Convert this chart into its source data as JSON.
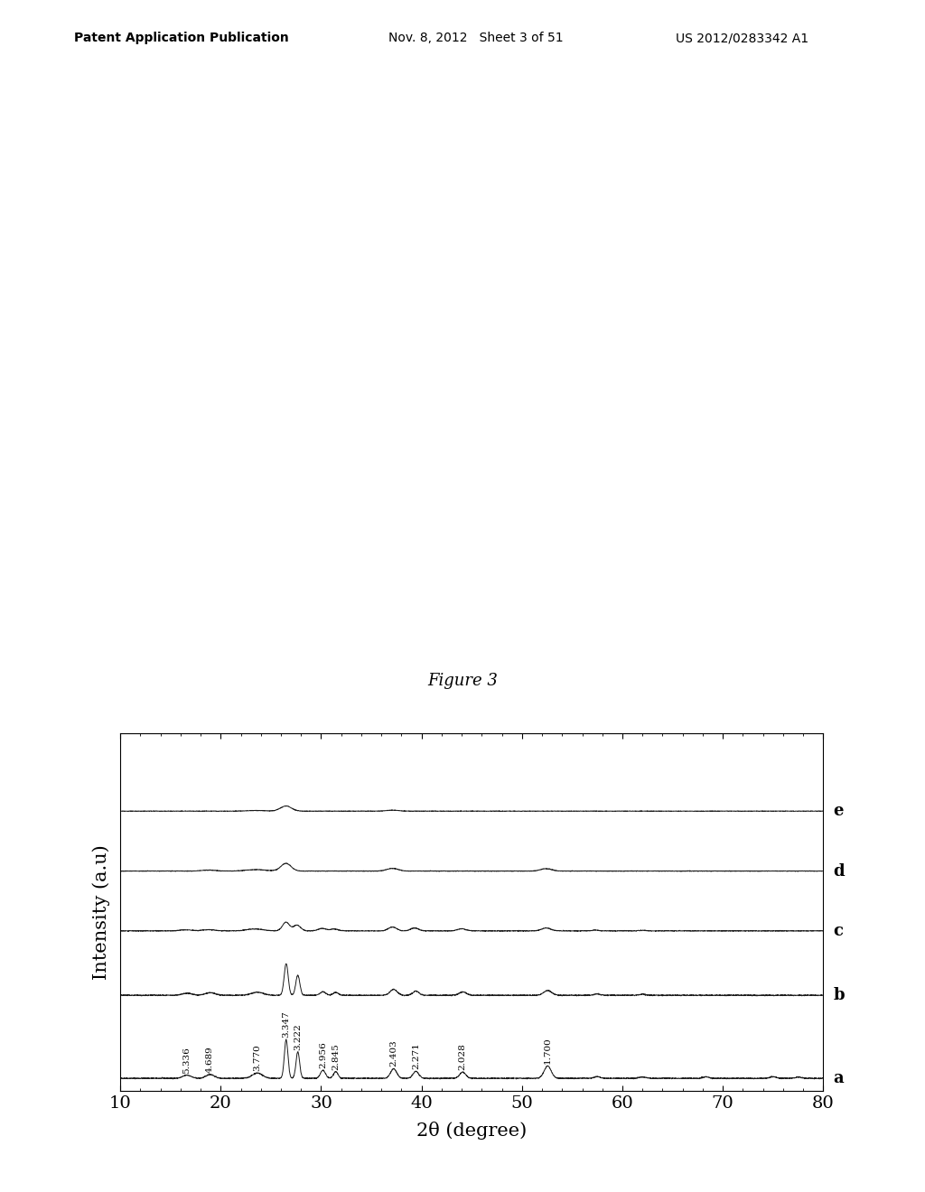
{
  "title": "Figure 3",
  "xlabel": "2θ (degree)",
  "ylabel": "Intensity (a.u)",
  "xlim": [
    10,
    80
  ],
  "xticklabels": [
    10,
    20,
    30,
    40,
    50,
    60,
    70,
    80
  ],
  "curve_labels": [
    "a",
    "b",
    "c",
    "d",
    "e"
  ],
  "curve_offsets": [
    0,
    1.8,
    3.2,
    4.5,
    5.8
  ],
  "peak_annotations": [
    {
      "x": 16.65,
      "label": "5.336"
    },
    {
      "x": 18.95,
      "label": "4.689"
    },
    {
      "x": 23.65,
      "label": "3.770"
    },
    {
      "x": 26.52,
      "label": "3.347"
    },
    {
      "x": 27.68,
      "label": "3.222"
    },
    {
      "x": 30.18,
      "label": "2.956"
    },
    {
      "x": 31.45,
      "label": "2.845"
    },
    {
      "x": 37.22,
      "label": "2.403"
    },
    {
      "x": 39.44,
      "label": "2.271"
    },
    {
      "x": 44.1,
      "label": "2.028"
    },
    {
      "x": 52.56,
      "label": "1.700"
    }
  ],
  "header_left": "Patent Application Publication",
  "header_mid": "Nov. 8, 2012   Sheet 3 of 51",
  "header_right": "US 2012/0283342 A1",
  "background_color": "#ffffff",
  "line_color": "#1a1a1a"
}
